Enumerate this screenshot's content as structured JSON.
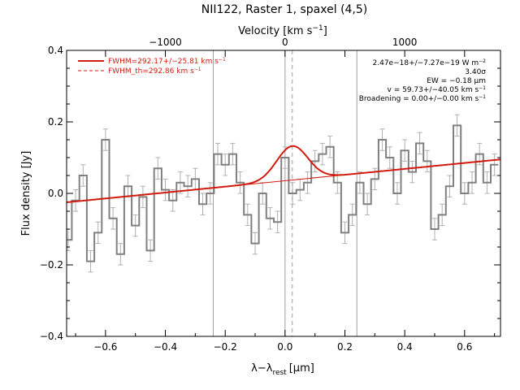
{
  "chart_data": {
    "type": "line",
    "title": "NII122, Raster 1, spaxel (4,5)",
    "xlabel_main": "λ−λ",
    "xlabel_sub": "rest",
    "xlabel_unit_open": "[",
    "xlabel_unit_mu": "μ",
    "xlabel_unit_close": "m]",
    "ylabel": "Flux density [Jy]",
    "top_axis_label": "Velocity [km s",
    "top_axis_sup": "−1",
    "top_axis_close": "]",
    "xlim": [
      -0.73,
      0.72
    ],
    "ylim": [
      -0.4,
      0.4
    ],
    "x_ticks": [
      -0.6,
      -0.4,
      -0.2,
      0.0,
      0.2,
      0.4,
      0.6
    ],
    "x_tick_labels": [
      "−0.6",
      "−0.4",
      "−0.2",
      "0.0",
      "0.2",
      "0.4",
      "0.6"
    ],
    "y_ticks": [
      -0.4,
      -0.2,
      0.0,
      0.2,
      0.4
    ],
    "y_tick_labels": [
      "−0.4",
      "−0.2",
      "0.0",
      "0.2",
      "0.4"
    ],
    "top_ticks_um": [
      -0.4,
      0.0,
      0.4
    ],
    "top_tick_labels": [
      "−1000",
      "0",
      "1000"
    ],
    "vertical_solid_lines": [
      -0.24,
      0.0,
      0.24
    ],
    "vertical_dashed_line": 0.024,
    "spectrum": {
      "x": [
        -0.725,
        -0.7,
        -0.675,
        -0.65,
        -0.625,
        -0.6,
        -0.575,
        -0.55,
        -0.525,
        -0.5,
        -0.475,
        -0.45,
        -0.425,
        -0.4,
        -0.375,
        -0.35,
        -0.325,
        -0.3,
        -0.275,
        -0.25,
        -0.225,
        -0.2,
        -0.175,
        -0.15,
        -0.125,
        -0.1,
        -0.075,
        -0.05,
        -0.025,
        0.0,
        0.025,
        0.05,
        0.075,
        0.1,
        0.125,
        0.15,
        0.175,
        0.2,
        0.225,
        0.25,
        0.275,
        0.3,
        0.325,
        0.35,
        0.375,
        0.4,
        0.425,
        0.45,
        0.475,
        0.5,
        0.525,
        0.55,
        0.575,
        0.6,
        0.625,
        0.65,
        0.675,
        0.7
      ],
      "y": [
        -0.13,
        -0.02,
        0.05,
        -0.19,
        -0.11,
        0.15,
        -0.07,
        -0.17,
        0.02,
        -0.09,
        -0.01,
        -0.16,
        0.07,
        0.01,
        -0.02,
        0.03,
        0.02,
        0.04,
        -0.03,
        0.0,
        0.11,
        0.08,
        0.11,
        0.03,
        -0.06,
        -0.14,
        0.0,
        -0.07,
        -0.08,
        0.1,
        0.0,
        0.01,
        0.03,
        0.09,
        0.11,
        0.13,
        0.03,
        -0.11,
        -0.06,
        0.03,
        -0.03,
        0.04,
        0.15,
        0.1,
        0.0,
        0.12,
        0.06,
        0.14,
        0.09,
        -0.1,
        -0.06,
        0.02,
        0.19,
        0.0,
        0.03,
        0.11,
        0.03,
        0.08
      ],
      "err": 0.03
    },
    "continuum": {
      "x": [
        -0.73,
        0.72
      ],
      "y": [
        -0.025,
        0.095
      ]
    },
    "gaussian": {
      "center": 0.024,
      "amplitude": 0.095,
      "sigma": 0.052
    },
    "legend": [
      {
        "label": "FWHM=292.17+/−25.81 km s",
        "sup": "−1",
        "style": "solid",
        "color": "#d21a0e"
      },
      {
        "label": "FWHM_th=292.86 km s",
        "sup": "−1",
        "style": "dashed",
        "color": "#d21a0e"
      }
    ],
    "annotations": [
      {
        "text": "2.47e−18+/−7.27e−19 W m",
        "sup": "−2"
      },
      {
        "text": "3.40σ",
        "sup": ""
      },
      {
        "text": "EW = −0.18 μm",
        "sup": ""
      },
      {
        "text": "v = 59.73+/−40.05 km s",
        "sup": "−1"
      },
      {
        "text": "Broadening = 0.00+/−0.00 km s",
        "sup": "−1"
      }
    ],
    "colors": {
      "data": "#808080",
      "error": "#b0b0b0",
      "fit": "#d21a0e",
      "axes": "#000000",
      "guides": "#a0a0a0"
    }
  }
}
